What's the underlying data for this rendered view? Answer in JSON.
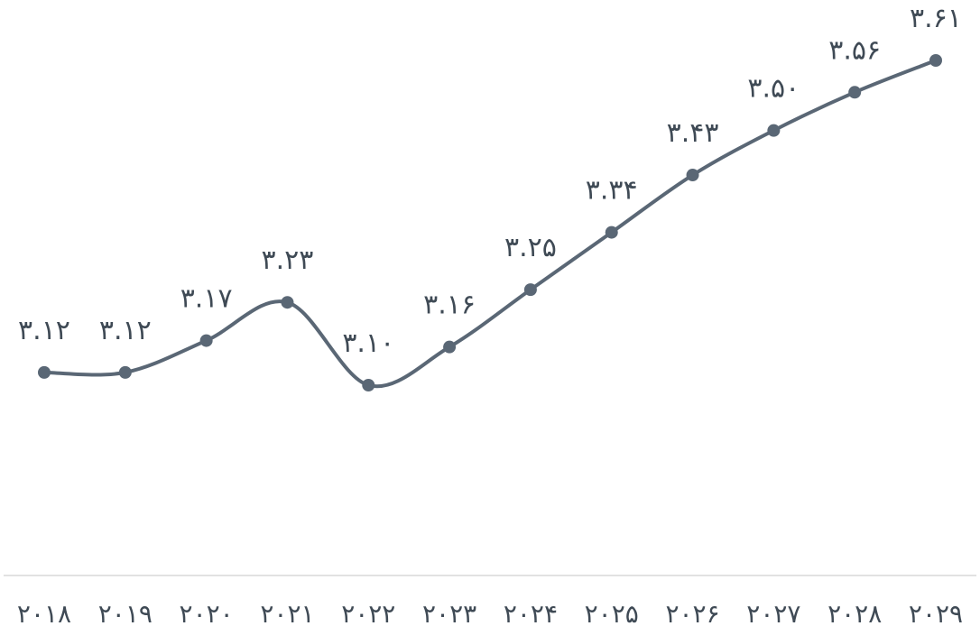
{
  "chart_data": {
    "type": "line",
    "categories": [
      "۲۰۱۸",
      "۲۰۱۹",
      "۲۰۲۰",
      "۲۰۲۱",
      "۲۰۲۲",
      "۲۰۲۳",
      "۲۰۲۴",
      "۲۰۲۵",
      "۲۰۲۶",
      "۲۰۲۷",
      "۲۰۲۸",
      "۲۰۲۹"
    ],
    "values": [
      3.12,
      3.12,
      3.17,
      3.23,
      3.1,
      3.16,
      3.25,
      3.34,
      3.43,
      3.5,
      3.56,
      3.61
    ],
    "data_labels": [
      "۳.۱۲",
      "۳.۱۲",
      "۳.۱۷",
      "۳.۲۳",
      "۳.۱۰",
      "۳.۱۶",
      "۳.۲۵",
      "۳.۳۴",
      "۳.۴۳",
      "۳.۵۰",
      "۳.۵۶",
      "۳.۶۱"
    ],
    "smooth": true,
    "markers": true,
    "grid": false,
    "legend": "none",
    "y_axis_visible": false,
    "colors": {
      "line": "#5a6775",
      "axis": "#d9d9d9",
      "text": "#3f4a55"
    }
  }
}
